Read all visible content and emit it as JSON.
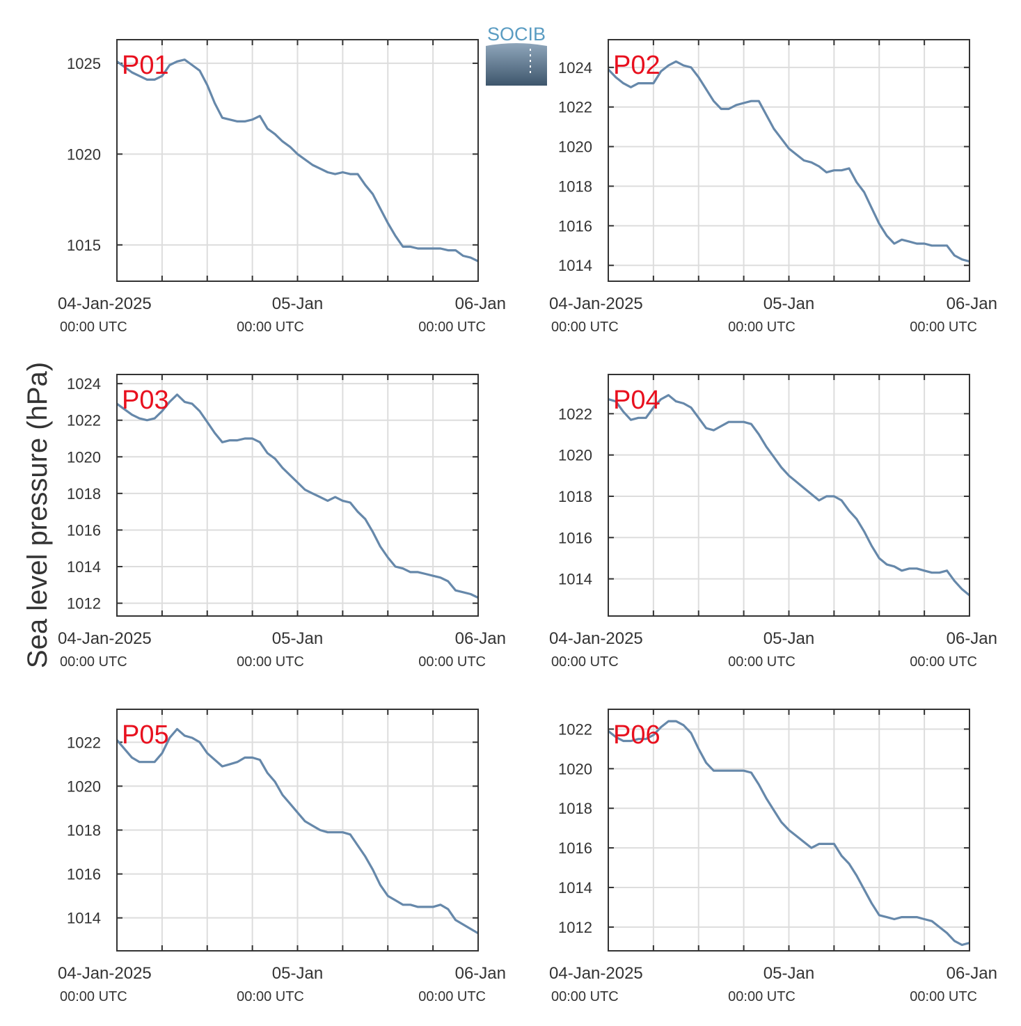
{
  "figure": {
    "ylabel": "Sea level pressure (hPa)",
    "logo_text": "SOCIB",
    "line_color": "#6688aa",
    "label_color": "#e8101e"
  },
  "chart_data": [
    {
      "type": "line",
      "name": "P01",
      "ylim": [
        1013,
        1026.3
      ],
      "yticks": [
        1015,
        1020,
        1025
      ],
      "x_range_hours": [
        0,
        48
      ],
      "x_ticks": [
        {
          "hour": 0,
          "label": "04-Jan-2025",
          "sublabel": "00:00 UTC"
        },
        {
          "hour": 24,
          "label": "05-Jan",
          "sublabel": "00:00 UTC"
        },
        {
          "hour": 48,
          "label": "06-Jan",
          "sublabel": "00:00 UTC"
        }
      ],
      "x": [
        0,
        1,
        2,
        3,
        4,
        5,
        6,
        7,
        8,
        9,
        10,
        11,
        12,
        13,
        14,
        15,
        16,
        17,
        18,
        19,
        20,
        21,
        22,
        23,
        24,
        25,
        26,
        27,
        28,
        29,
        30,
        31,
        32,
        33,
        34,
        35,
        36,
        37,
        38,
        39,
        40,
        41,
        42,
        43,
        44,
        45,
        46,
        47,
        48
      ],
      "y": [
        1025.1,
        1024.8,
        1024.5,
        1024.3,
        1024.1,
        1024.1,
        1024.3,
        1024.9,
        1025.1,
        1025.2,
        1024.9,
        1024.6,
        1023.8,
        1022.8,
        1022.0,
        1021.9,
        1021.8,
        1021.8,
        1021.9,
        1022.1,
        1021.4,
        1021.1,
        1020.7,
        1020.4,
        1020.0,
        1019.7,
        1019.4,
        1019.2,
        1019.0,
        1018.9,
        1019.0,
        1018.9,
        1018.9,
        1018.3,
        1017.8,
        1017.0,
        1016.2,
        1015.5,
        1014.9,
        1014.9,
        1014.8,
        1014.8,
        1014.8,
        1014.8,
        1014.7,
        1014.7,
        1014.4,
        1014.3,
        1014.1
      ]
    },
    {
      "type": "line",
      "name": "P02",
      "ylim": [
        1013.2,
        1025.4
      ],
      "yticks": [
        1014,
        1016,
        1018,
        1020,
        1022,
        1024
      ],
      "x_range_hours": [
        0,
        48
      ],
      "x_ticks": [
        {
          "hour": 0,
          "label": "04-Jan-2025",
          "sublabel": "00:00 UTC"
        },
        {
          "hour": 24,
          "label": "05-Jan",
          "sublabel": "00:00 UTC"
        },
        {
          "hour": 48,
          "label": "06-Jan",
          "sublabel": "00:00 UTC"
        }
      ],
      "x": [
        0,
        1,
        2,
        3,
        4,
        5,
        6,
        7,
        8,
        9,
        10,
        11,
        12,
        13,
        14,
        15,
        16,
        17,
        18,
        19,
        20,
        21,
        22,
        23,
        24,
        25,
        26,
        27,
        28,
        29,
        30,
        31,
        32,
        33,
        34,
        35,
        36,
        37,
        38,
        39,
        40,
        41,
        42,
        43,
        44,
        45,
        46,
        47,
        48
      ],
      "y": [
        1023.9,
        1023.5,
        1023.2,
        1023.0,
        1023.2,
        1023.2,
        1023.2,
        1023.8,
        1024.1,
        1024.3,
        1024.1,
        1024.0,
        1023.5,
        1022.9,
        1022.3,
        1021.9,
        1021.9,
        1022.1,
        1022.2,
        1022.3,
        1022.3,
        1021.6,
        1020.9,
        1020.4,
        1019.9,
        1019.6,
        1019.3,
        1019.2,
        1019.0,
        1018.7,
        1018.8,
        1018.8,
        1018.9,
        1018.2,
        1017.7,
        1016.9,
        1016.1,
        1015.5,
        1015.1,
        1015.3,
        1015.2,
        1015.1,
        1015.1,
        1015.0,
        1015.0,
        1015.0,
        1014.5,
        1014.3,
        1014.2
      ]
    },
    {
      "type": "line",
      "name": "P03",
      "ylim": [
        1011.3,
        1024.5
      ],
      "yticks": [
        1012,
        1014,
        1016,
        1018,
        1020,
        1022,
        1024
      ],
      "x_range_hours": [
        0,
        48
      ],
      "x_ticks": [
        {
          "hour": 0,
          "label": "04-Jan-2025",
          "sublabel": "00:00 UTC"
        },
        {
          "hour": 24,
          "label": "05-Jan",
          "sublabel": "00:00 UTC"
        },
        {
          "hour": 48,
          "label": "06-Jan",
          "sublabel": "00:00 UTC"
        }
      ],
      "x": [
        0,
        1,
        2,
        3,
        4,
        5,
        6,
        7,
        8,
        9,
        10,
        11,
        12,
        13,
        14,
        15,
        16,
        17,
        18,
        19,
        20,
        21,
        22,
        23,
        24,
        25,
        26,
        27,
        28,
        29,
        30,
        31,
        32,
        33,
        34,
        35,
        36,
        37,
        38,
        39,
        40,
        41,
        42,
        43,
        44,
        45,
        46,
        47,
        48
      ],
      "y": [
        1022.9,
        1022.6,
        1022.3,
        1022.1,
        1022.0,
        1022.1,
        1022.5,
        1023.0,
        1023.4,
        1023.0,
        1022.9,
        1022.5,
        1021.9,
        1021.3,
        1020.8,
        1020.9,
        1020.9,
        1021.0,
        1021.0,
        1020.8,
        1020.2,
        1019.9,
        1019.4,
        1019.0,
        1018.6,
        1018.2,
        1018.0,
        1017.8,
        1017.6,
        1017.8,
        1017.6,
        1017.5,
        1017.0,
        1016.6,
        1015.9,
        1015.1,
        1014.5,
        1014.0,
        1013.9,
        1013.7,
        1013.7,
        1013.6,
        1013.5,
        1013.4,
        1013.2,
        1012.7,
        1012.6,
        1012.5,
        1012.3
      ]
    },
    {
      "type": "line",
      "name": "P04",
      "ylim": [
        1012.2,
        1023.9
      ],
      "yticks": [
        1014,
        1016,
        1018,
        1020,
        1022
      ],
      "x_range_hours": [
        0,
        48
      ],
      "x_ticks": [
        {
          "hour": 0,
          "label": "04-Jan-2025",
          "sublabel": "00:00 UTC"
        },
        {
          "hour": 24,
          "label": "05-Jan",
          "sublabel": "00:00 UTC"
        },
        {
          "hour": 48,
          "label": "06-Jan",
          "sublabel": "00:00 UTC"
        }
      ],
      "x": [
        0,
        1,
        2,
        3,
        4,
        5,
        6,
        7,
        8,
        9,
        10,
        11,
        12,
        13,
        14,
        15,
        16,
        17,
        18,
        19,
        20,
        21,
        22,
        23,
        24,
        25,
        26,
        27,
        28,
        29,
        30,
        31,
        32,
        33,
        34,
        35,
        36,
        37,
        38,
        39,
        40,
        41,
        42,
        43,
        44,
        45,
        46,
        47,
        48
      ],
      "y": [
        1022.7,
        1022.6,
        1022.1,
        1021.7,
        1021.8,
        1021.8,
        1022.3,
        1022.7,
        1022.9,
        1022.6,
        1022.5,
        1022.3,
        1021.8,
        1021.3,
        1021.2,
        1021.4,
        1021.6,
        1021.6,
        1021.6,
        1021.5,
        1021.0,
        1020.4,
        1019.9,
        1019.4,
        1019.0,
        1018.7,
        1018.4,
        1018.1,
        1017.8,
        1018.0,
        1018.0,
        1017.8,
        1017.3,
        1016.9,
        1016.3,
        1015.6,
        1015.0,
        1014.7,
        1014.6,
        1014.4,
        1014.5,
        1014.5,
        1014.4,
        1014.3,
        1014.3,
        1014.4,
        1013.9,
        1013.5,
        1013.2
      ]
    },
    {
      "type": "line",
      "name": "P05",
      "ylim": [
        1012.5,
        1023.5
      ],
      "yticks": [
        1014,
        1016,
        1018,
        1020,
        1022
      ],
      "x_range_hours": [
        0,
        48
      ],
      "x_ticks": [
        {
          "hour": 0,
          "label": "04-Jan-2025",
          "sublabel": "00:00 UTC"
        },
        {
          "hour": 24,
          "label": "05-Jan",
          "sublabel": "00:00 UTC"
        },
        {
          "hour": 48,
          "label": "06-Jan",
          "sublabel": "00:00 UTC"
        }
      ],
      "x": [
        0,
        1,
        2,
        3,
        4,
        5,
        6,
        7,
        8,
        9,
        10,
        11,
        12,
        13,
        14,
        15,
        16,
        17,
        18,
        19,
        20,
        21,
        22,
        23,
        24,
        25,
        26,
        27,
        28,
        29,
        30,
        31,
        32,
        33,
        34,
        35,
        36,
        37,
        38,
        39,
        40,
        41,
        42,
        43,
        44,
        45,
        46,
        47,
        48
      ],
      "y": [
        1022.1,
        1021.7,
        1021.3,
        1021.1,
        1021.1,
        1021.1,
        1021.5,
        1022.2,
        1022.6,
        1022.3,
        1022.2,
        1022.0,
        1021.5,
        1021.2,
        1020.9,
        1021.0,
        1021.1,
        1021.3,
        1021.3,
        1021.2,
        1020.6,
        1020.2,
        1019.6,
        1019.2,
        1018.8,
        1018.4,
        1018.2,
        1018.0,
        1017.9,
        1017.9,
        1017.9,
        1017.8,
        1017.3,
        1016.8,
        1016.2,
        1015.5,
        1015.0,
        1014.8,
        1014.6,
        1014.6,
        1014.5,
        1014.5,
        1014.5,
        1014.6,
        1014.4,
        1013.9,
        1013.7,
        1013.5,
        1013.3
      ]
    },
    {
      "type": "line",
      "name": "P06",
      "ylim": [
        1010.8,
        1023.0
      ],
      "yticks": [
        1012,
        1014,
        1016,
        1018,
        1020,
        1022
      ],
      "x_range_hours": [
        0,
        48
      ],
      "x_ticks": [
        {
          "hour": 0,
          "label": "04-Jan-2025",
          "sublabel": "00:00 UTC"
        },
        {
          "hour": 24,
          "label": "05-Jan",
          "sublabel": "00:00 UTC"
        },
        {
          "hour": 48,
          "label": "06-Jan",
          "sublabel": "00:00 UTC"
        }
      ],
      "x": [
        0,
        1,
        2,
        3,
        4,
        5,
        6,
        7,
        8,
        9,
        10,
        11,
        12,
        13,
        14,
        15,
        16,
        17,
        18,
        19,
        20,
        21,
        22,
        23,
        24,
        25,
        26,
        27,
        28,
        29,
        30,
        31,
        32,
        33,
        34,
        35,
        36,
        37,
        38,
        39,
        40,
        41,
        42,
        43,
        44,
        45,
        46,
        47,
        48
      ],
      "y": [
        1021.9,
        1021.6,
        1021.4,
        1021.4,
        1021.5,
        1021.5,
        1021.7,
        1022.1,
        1022.4,
        1022.4,
        1022.2,
        1021.8,
        1021.0,
        1020.3,
        1019.9,
        1019.9,
        1019.9,
        1019.9,
        1019.9,
        1019.8,
        1019.2,
        1018.5,
        1017.9,
        1017.3,
        1016.9,
        1016.6,
        1016.3,
        1016.0,
        1016.2,
        1016.2,
        1016.2,
        1015.6,
        1015.2,
        1014.6,
        1013.9,
        1013.2,
        1012.6,
        1012.5,
        1012.4,
        1012.5,
        1012.5,
        1012.5,
        1012.4,
        1012.3,
        1012.0,
        1011.7,
        1011.3,
        1011.1,
        1011.2
      ]
    }
  ]
}
